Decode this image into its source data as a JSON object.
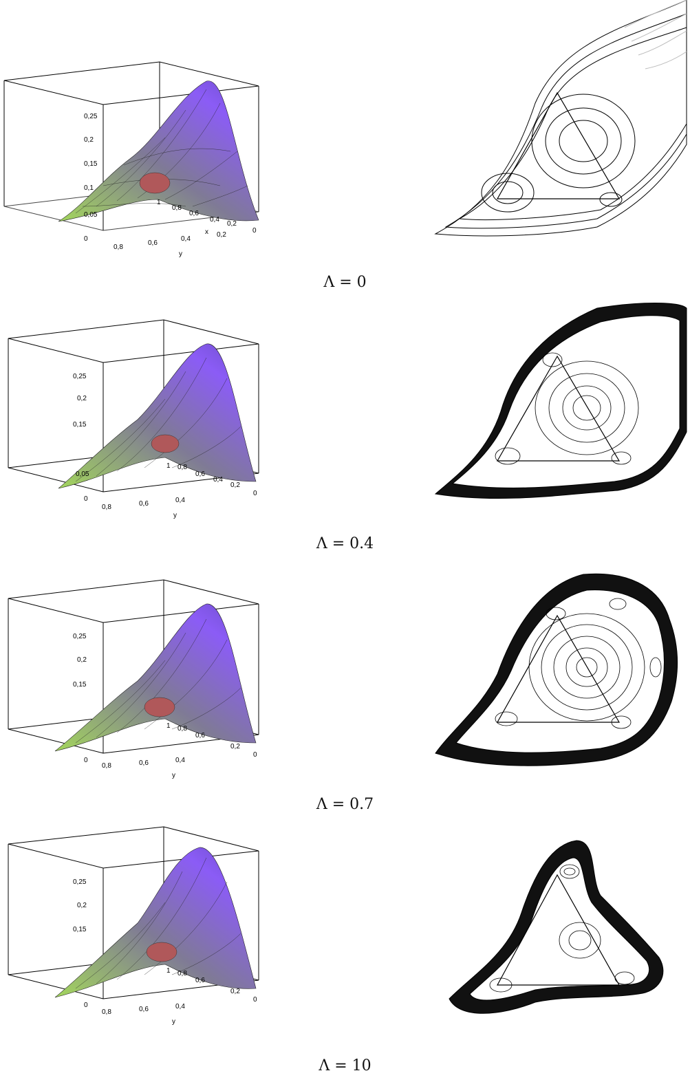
{
  "panels": [
    {
      "caption": "Λ = 0"
    },
    {
      "caption": "Λ = 0.4"
    },
    {
      "caption": "Λ = 0.7"
    },
    {
      "caption": "Λ = 10"
    }
  ],
  "plot3d": {
    "z_ticks": [
      "0",
      "0,05",
      "0,1",
      "0,15",
      "0,2",
      "0,25"
    ],
    "x_ticks": [
      "1",
      "0,8",
      "0,6",
      "0,4",
      "0,2",
      "0"
    ],
    "y_ticks": [
      "0,8",
      "0,6",
      "0,4",
      "0,2"
    ],
    "x_label": "x",
    "y_label": "y"
  },
  "colors": {
    "surface_peak": "#8b5cf6",
    "surface_low": "#a3d65c",
    "dip": "#b0585a",
    "contour_line": "#000000",
    "contour_fade": "#bbbbbb"
  }
}
